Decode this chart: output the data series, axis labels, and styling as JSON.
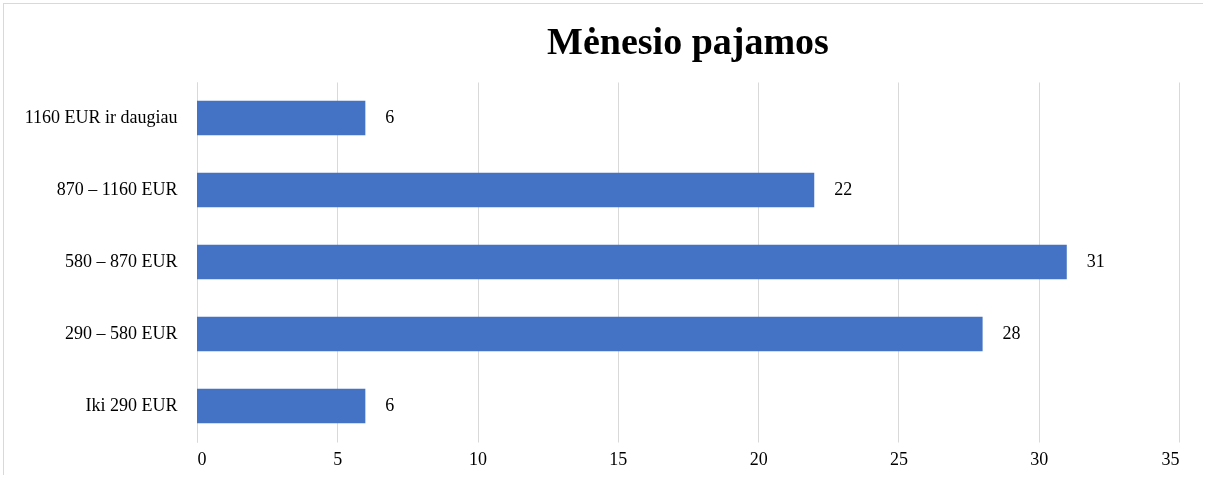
{
  "chart_data": {
    "type": "bar",
    "orientation": "horizontal",
    "title": "Mėnesio pajamos",
    "categories": [
      "1160 EUR ir daugiau",
      "870 – 1160 EUR",
      "580 – 870 EUR",
      "290 – 580 EUR",
      "Iki 290 EUR"
    ],
    "values": [
      6,
      22,
      31,
      28,
      6
    ],
    "color": "#4472c4",
    "xlim": [
      0,
      35
    ],
    "xticks": [
      0,
      5,
      10,
      15,
      20,
      25,
      30,
      35
    ],
    "grid": "x",
    "data_labels": true
  }
}
